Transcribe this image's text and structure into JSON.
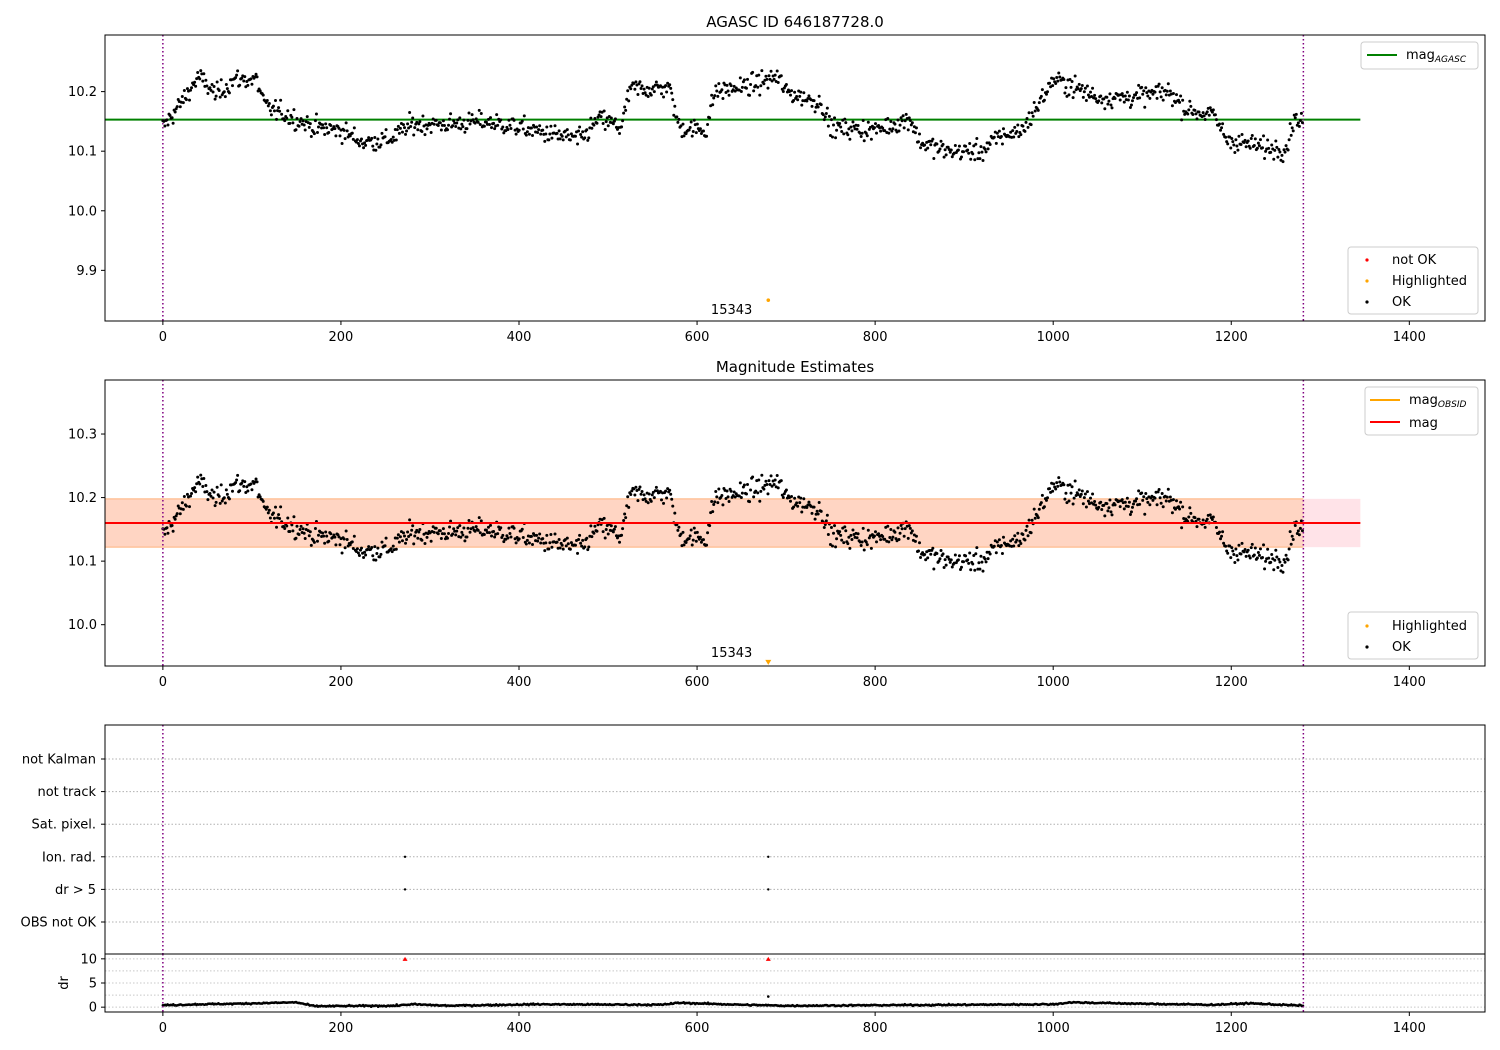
{
  "figure": {
    "title_top": "AGASC ID 646187728.0",
    "title_mid": "Magnitude Estimates",
    "xticks": [
      "0",
      "200",
      "400",
      "600",
      "800",
      "1000",
      "1200",
      "1400"
    ]
  },
  "colors": {
    "ok": "#000000",
    "not_ok": "#ff0000",
    "highlighted": "#ffa500",
    "mag_agasc": "#008000",
    "mag": "#ff0000",
    "mag_obsid": "#ffa500",
    "obs_boundary": "#800080",
    "band_pink": "#ffc0cb",
    "band_salmon": "#ffdab9"
  },
  "chart_data": [
    {
      "type": "scatter",
      "panel": "top",
      "title": "AGASC ID 646187728.0",
      "xlim": [
        -65,
        1485
      ],
      "ylim": [
        9.815,
        10.295
      ],
      "yticks": [
        "9.9",
        "10.0",
        "10.1",
        "10.2"
      ],
      "mag_agasc": 10.153,
      "mag_agasc_x_range": [
        -65,
        1345
      ],
      "obs_boundaries": [
        0,
        1281
      ],
      "annotation": {
        "text": "15343",
        "x": 680,
        "y": 9.85
      },
      "highlighted_points": [
        {
          "x": 680,
          "y": 9.85
        }
      ],
      "legend_lines": [
        {
          "label": "mag",
          "sub": "AGASC"
        }
      ],
      "legend_points": [
        "not OK",
        "Highlighted",
        "OK"
      ],
      "ok_points_trend": [
        [
          0,
          10.14
        ],
        [
          20,
          10.18
        ],
        [
          40,
          10.225
        ],
        [
          60,
          10.195
        ],
        [
          80,
          10.22
        ],
        [
          105,
          10.22
        ],
        [
          115,
          10.175
        ],
        [
          140,
          10.16
        ],
        [
          170,
          10.14
        ],
        [
          200,
          10.135
        ],
        [
          225,
          10.115
        ],
        [
          255,
          10.12
        ],
        [
          280,
          10.145
        ],
        [
          320,
          10.145
        ],
        [
          360,
          10.15
        ],
        [
          400,
          10.14
        ],
        [
          430,
          10.13
        ],
        [
          470,
          10.12
        ],
        [
          490,
          10.155
        ],
        [
          515,
          10.14
        ],
        [
          525,
          10.205
        ],
        [
          560,
          10.205
        ],
        [
          568,
          10.21
        ],
        [
          580,
          10.14
        ],
        [
          610,
          10.135
        ],
        [
          620,
          10.2
        ],
        [
          660,
          10.21
        ],
        [
          690,
          10.225
        ],
        [
          700,
          10.2
        ],
        [
          740,
          10.18
        ],
        [
          750,
          10.14
        ],
        [
          800,
          10.135
        ],
        [
          840,
          10.155
        ],
        [
          850,
          10.115
        ],
        [
          880,
          10.1
        ],
        [
          920,
          10.1
        ],
        [
          940,
          10.125
        ],
        [
          965,
          10.135
        ],
        [
          980,
          10.17
        ],
        [
          1000,
          10.22
        ],
        [
          1020,
          10.21
        ],
        [
          1050,
          10.19
        ],
        [
          1080,
          10.19
        ],
        [
          1110,
          10.195
        ],
        [
          1130,
          10.2
        ],
        [
          1150,
          10.17
        ],
        [
          1180,
          10.16
        ],
        [
          1195,
          10.12
        ],
        [
          1240,
          10.105
        ],
        [
          1262,
          10.105
        ],
        [
          1270,
          10.155
        ],
        [
          1281,
          10.15
        ]
      ]
    },
    {
      "type": "scatter",
      "panel": "middle",
      "title": "Magnitude Estimates",
      "xlim": [
        -65,
        1485
      ],
      "ylim": [
        9.935,
        10.385
      ],
      "yticks": [
        "10.0",
        "10.1",
        "10.2",
        "10.3"
      ],
      "mag": 10.16,
      "mag_x_range": [
        -65,
        1345
      ],
      "band_pink": [
        10.122,
        10.198
      ],
      "band_salmon": [
        10.122,
        10.198
      ],
      "band_salmon_x_range": [
        -65,
        1281
      ],
      "obs_boundaries": [
        0,
        1281
      ],
      "annotation": {
        "text": "15343",
        "x": 680,
        "y": 9.94
      },
      "highlighted_points": [
        {
          "x": 680,
          "y": 9.94
        }
      ],
      "legend_lines": [
        {
          "label": "mag",
          "sub": "OBSID"
        },
        {
          "label": "mag",
          "sub": ""
        }
      ],
      "legend_points": [
        "Highlighted",
        "OK"
      ],
      "ok_points_same_as": "top"
    },
    {
      "type": "scatter",
      "panel": "flags",
      "xlim": [
        -65,
        1485
      ],
      "categories": [
        "not Kalman",
        "not track",
        "Sat. pixel.",
        "Ion. rad.",
        "dr > 5",
        "OBS not OK"
      ],
      "flagged_points": [
        {
          "category": "Ion. rad.",
          "x": [
            272,
            680
          ]
        },
        {
          "category": "dr > 5",
          "x": [
            272,
            680
          ]
        }
      ],
      "obs_boundaries": [
        0,
        1281
      ]
    },
    {
      "type": "scatter",
      "panel": "dr",
      "xlim": [
        -65,
        1485
      ],
      "ylabel": "dr",
      "ylim": [
        -1,
        11
      ],
      "yticks": [
        "0",
        "5",
        "10"
      ],
      "baseline_trend": [
        [
          0,
          0.4
        ],
        [
          40,
          0.6
        ],
        [
          80,
          0.7
        ],
        [
          150,
          1.0
        ],
        [
          170,
          0.2
        ],
        [
          260,
          0.3
        ],
        [
          280,
          0.6
        ],
        [
          320,
          0.3
        ],
        [
          420,
          0.6
        ],
        [
          560,
          0.5
        ],
        [
          580,
          0.9
        ],
        [
          650,
          0.5
        ],
        [
          700,
          0.3
        ],
        [
          800,
          0.4
        ],
        [
          900,
          0.5
        ],
        [
          1000,
          0.6
        ],
        [
          1020,
          1.0
        ],
        [
          1100,
          0.7
        ],
        [
          1180,
          0.5
        ],
        [
          1220,
          0.8
        ],
        [
          1281,
          0.3
        ]
      ],
      "outliers": [
        {
          "x": 680,
          "y": 2.2
        }
      ],
      "not_ok_markers": [
        {
          "x": 272,
          "y": 10
        },
        {
          "x": 680,
          "y": 10
        }
      ],
      "obs_boundaries": [
        0,
        1281
      ]
    }
  ]
}
